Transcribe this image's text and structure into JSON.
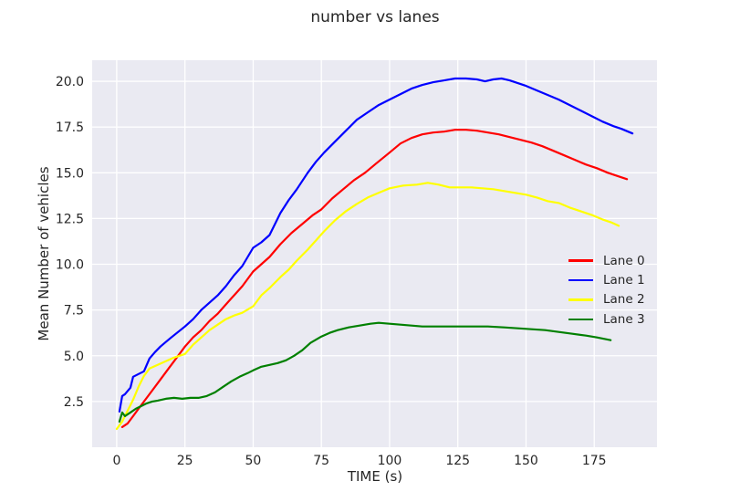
{
  "chart_data": {
    "type": "line",
    "title": "number vs lanes",
    "xlabel": "TIME (s)",
    "ylabel": "Mean Number of vehicles",
    "xlim": [
      -9,
      198
    ],
    "ylim": [
      0,
      21.15
    ],
    "xticks": [
      0,
      25,
      50,
      75,
      100,
      125,
      150,
      175
    ],
    "yticks": [
      2.5,
      5.0,
      7.5,
      10.0,
      12.5,
      15.0,
      17.5,
      20.0
    ],
    "grid": true,
    "legend_position": "center-right",
    "colors": {
      "figure_bg": "#ffffff",
      "plot_bg": "#eaeaf2",
      "grid": "#ffffff",
      "text": "#262626"
    },
    "series": [
      {
        "name": "Lane 0",
        "color": "#ff0000",
        "points": [
          [
            2,
            1.1
          ],
          [
            4,
            1.3
          ],
          [
            6,
            1.7
          ],
          [
            8,
            2.1
          ],
          [
            10,
            2.5
          ],
          [
            13,
            3.1
          ],
          [
            16,
            3.7
          ],
          [
            19,
            4.3
          ],
          [
            22,
            4.9
          ],
          [
            25,
            5.5
          ],
          [
            28,
            6.0
          ],
          [
            31,
            6.4
          ],
          [
            34,
            6.9
          ],
          [
            37,
            7.3
          ],
          [
            40,
            7.8
          ],
          [
            43,
            8.3
          ],
          [
            46,
            8.8
          ],
          [
            50,
            9.6
          ],
          [
            53,
            10.0
          ],
          [
            56,
            10.4
          ],
          [
            60,
            11.1
          ],
          [
            64,
            11.7
          ],
          [
            68,
            12.2
          ],
          [
            72,
            12.7
          ],
          [
            75,
            13.0
          ],
          [
            79,
            13.6
          ],
          [
            83,
            14.1
          ],
          [
            87,
            14.6
          ],
          [
            91,
            15.0
          ],
          [
            95,
            15.5
          ],
          [
            100,
            16.1
          ],
          [
            104,
            16.6
          ],
          [
            108,
            16.9
          ],
          [
            112,
            17.1
          ],
          [
            116,
            17.2
          ],
          [
            120,
            17.25
          ],
          [
            124,
            17.35
          ],
          [
            128,
            17.35
          ],
          [
            132,
            17.3
          ],
          [
            136,
            17.2
          ],
          [
            140,
            17.1
          ],
          [
            144,
            16.95
          ],
          [
            148,
            16.8
          ],
          [
            152,
            16.65
          ],
          [
            156,
            16.45
          ],
          [
            160,
            16.2
          ],
          [
            164,
            15.95
          ],
          [
            168,
            15.7
          ],
          [
            172,
            15.45
          ],
          [
            176,
            15.25
          ],
          [
            180,
            15.0
          ],
          [
            184,
            14.8
          ],
          [
            187,
            14.65
          ]
        ]
      },
      {
        "name": "Lane 1",
        "color": "#0000ff",
        "points": [
          [
            1,
            1.95
          ],
          [
            2,
            2.8
          ],
          [
            3,
            2.9
          ],
          [
            5,
            3.25
          ],
          [
            6,
            3.85
          ],
          [
            8,
            4.0
          ],
          [
            10,
            4.15
          ],
          [
            12,
            4.85
          ],
          [
            14,
            5.2
          ],
          [
            16,
            5.5
          ],
          [
            18,
            5.75
          ],
          [
            20,
            6.0
          ],
          [
            25,
            6.6
          ],
          [
            28,
            7.0
          ],
          [
            31,
            7.5
          ],
          [
            34,
            7.9
          ],
          [
            37,
            8.3
          ],
          [
            40,
            8.8
          ],
          [
            43,
            9.4
          ],
          [
            46,
            9.9
          ],
          [
            50,
            10.9
          ],
          [
            53,
            11.2
          ],
          [
            56,
            11.6
          ],
          [
            60,
            12.8
          ],
          [
            63,
            13.5
          ],
          [
            66,
            14.1
          ],
          [
            70,
            15.0
          ],
          [
            73,
            15.6
          ],
          [
            76,
            16.1
          ],
          [
            80,
            16.7
          ],
          [
            84,
            17.3
          ],
          [
            88,
            17.9
          ],
          [
            92,
            18.3
          ],
          [
            96,
            18.7
          ],
          [
            100,
            19.0
          ],
          [
            104,
            19.3
          ],
          [
            108,
            19.6
          ],
          [
            112,
            19.8
          ],
          [
            116,
            19.95
          ],
          [
            120,
            20.05
          ],
          [
            124,
            20.15
          ],
          [
            128,
            20.15
          ],
          [
            132,
            20.1
          ],
          [
            135,
            20.0
          ],
          [
            138,
            20.1
          ],
          [
            141,
            20.15
          ],
          [
            144,
            20.05
          ],
          [
            147,
            19.9
          ],
          [
            150,
            19.75
          ],
          [
            154,
            19.5
          ],
          [
            158,
            19.25
          ],
          [
            162,
            19.0
          ],
          [
            166,
            18.7
          ],
          [
            170,
            18.4
          ],
          [
            174,
            18.1
          ],
          [
            178,
            17.8
          ],
          [
            182,
            17.55
          ],
          [
            185,
            17.4
          ],
          [
            189,
            17.15
          ]
        ]
      },
      {
        "name": "Lane 2",
        "color": "#ffff00",
        "points": [
          [
            0,
            1.0
          ],
          [
            2,
            1.4
          ],
          [
            4,
            2.0
          ],
          [
            6,
            2.6
          ],
          [
            8,
            3.3
          ],
          [
            10,
            3.9
          ],
          [
            12,
            4.3
          ],
          [
            15,
            4.5
          ],
          [
            18,
            4.7
          ],
          [
            21,
            4.9
          ],
          [
            25,
            5.1
          ],
          [
            28,
            5.6
          ],
          [
            31,
            6.0
          ],
          [
            34,
            6.4
          ],
          [
            37,
            6.7
          ],
          [
            40,
            7.0
          ],
          [
            43,
            7.2
          ],
          [
            46,
            7.35
          ],
          [
            50,
            7.7
          ],
          [
            53,
            8.3
          ],
          [
            56,
            8.7
          ],
          [
            60,
            9.3
          ],
          [
            63,
            9.7
          ],
          [
            66,
            10.2
          ],
          [
            70,
            10.8
          ],
          [
            73,
            11.3
          ],
          [
            76,
            11.8
          ],
          [
            80,
            12.4
          ],
          [
            84,
            12.9
          ],
          [
            88,
            13.3
          ],
          [
            92,
            13.65
          ],
          [
            96,
            13.9
          ],
          [
            100,
            14.15
          ],
          [
            105,
            14.3
          ],
          [
            110,
            14.35
          ],
          [
            114,
            14.45
          ],
          [
            118,
            14.35
          ],
          [
            122,
            14.2
          ],
          [
            126,
            14.2
          ],
          [
            130,
            14.2
          ],
          [
            134,
            14.15
          ],
          [
            138,
            14.1
          ],
          [
            142,
            14.0
          ],
          [
            146,
            13.9
          ],
          [
            150,
            13.8
          ],
          [
            154,
            13.65
          ],
          [
            158,
            13.45
          ],
          [
            162,
            13.35
          ],
          [
            166,
            13.1
          ],
          [
            170,
            12.9
          ],
          [
            174,
            12.7
          ],
          [
            178,
            12.45
          ],
          [
            181,
            12.3
          ],
          [
            184,
            12.1
          ]
        ]
      },
      {
        "name": "Lane 3",
        "color": "#008000",
        "points": [
          [
            1,
            1.4
          ],
          [
            2,
            1.9
          ],
          [
            3,
            1.7
          ],
          [
            5,
            1.9
          ],
          [
            7,
            2.1
          ],
          [
            9,
            2.25
          ],
          [
            11,
            2.4
          ],
          [
            13,
            2.5
          ],
          [
            15,
            2.55
          ],
          [
            18,
            2.65
          ],
          [
            21,
            2.7
          ],
          [
            24,
            2.65
          ],
          [
            27,
            2.7
          ],
          [
            30,
            2.7
          ],
          [
            33,
            2.8
          ],
          [
            36,
            3.0
          ],
          [
            39,
            3.3
          ],
          [
            42,
            3.6
          ],
          [
            45,
            3.85
          ],
          [
            48,
            4.05
          ],
          [
            50,
            4.2
          ],
          [
            53,
            4.4
          ],
          [
            56,
            4.5
          ],
          [
            59,
            4.6
          ],
          [
            62,
            4.75
          ],
          [
            65,
            5.0
          ],
          [
            68,
            5.3
          ],
          [
            71,
            5.7
          ],
          [
            75,
            6.05
          ],
          [
            78,
            6.25
          ],
          [
            81,
            6.4
          ],
          [
            85,
            6.55
          ],
          [
            89,
            6.65
          ],
          [
            93,
            6.75
          ],
          [
            96,
            6.8
          ],
          [
            100,
            6.75
          ],
          [
            104,
            6.7
          ],
          [
            108,
            6.65
          ],
          [
            112,
            6.6
          ],
          [
            118,
            6.6
          ],
          [
            124,
            6.6
          ],
          [
            130,
            6.6
          ],
          [
            136,
            6.6
          ],
          [
            142,
            6.55
          ],
          [
            147,
            6.5
          ],
          [
            152,
            6.45
          ],
          [
            157,
            6.4
          ],
          [
            162,
            6.3
          ],
          [
            167,
            6.2
          ],
          [
            172,
            6.1
          ],
          [
            176,
            6.0
          ],
          [
            181,
            5.85
          ]
        ]
      }
    ]
  }
}
